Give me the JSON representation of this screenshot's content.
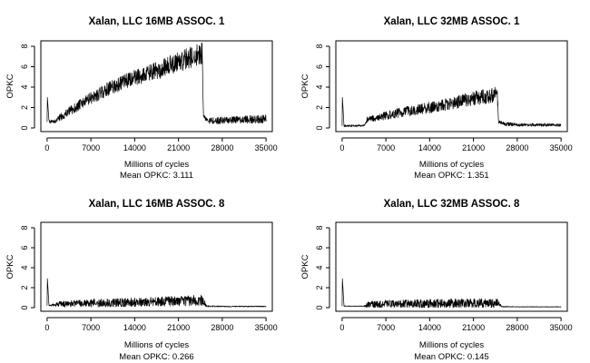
{
  "chart_data": [
    {
      "type": "line",
      "title": "Xalan, LLC 16MB ASSOC. 1",
      "xlabel": "Millions of cycles",
      "ylabel": "OPKC",
      "subtitle": "Mean OPKC: 3.111",
      "xlim": [
        -1000,
        36000
      ],
      "ylim": [
        0,
        8
      ],
      "xticks": [
        0,
        7000,
        14000,
        21000,
        28000,
        35000
      ],
      "yticks": [
        0,
        2,
        4,
        6,
        8
      ],
      "series": [
        {
          "x": [
            0,
            50,
            300,
            1500,
            2000,
            4000,
            7000,
            10000,
            14000,
            17500,
            21000,
            24800,
            25000,
            26000,
            28000,
            31000,
            35000
          ],
          "y": [
            0.6,
            3.0,
            0.6,
            0.7,
            1.0,
            1.8,
            2.9,
            3.9,
            4.9,
            5.6,
            6.5,
            7.3,
            1.1,
            0.7,
            0.75,
            0.8,
            0.9
          ],
          "noise": [
            0,
            0,
            0.15,
            0.2,
            0.35,
            0.5,
            0.6,
            0.7,
            0.8,
            0.9,
            1.0,
            1.1,
            0.2,
            0.3,
            0.35,
            0.35,
            0.45
          ]
        }
      ]
    },
    {
      "type": "line",
      "title": "Xalan, LLC 32MB ASSOC. 1",
      "xlabel": "Millions of cycles",
      "ylabel": "OPKC",
      "subtitle": "Mean OPKC: 1.351",
      "xlim": [
        -1000,
        36000
      ],
      "ylim": [
        0,
        8
      ],
      "xticks": [
        0,
        7000,
        14000,
        21000,
        28000,
        35000
      ],
      "yticks": [
        0,
        2,
        4,
        6,
        8
      ],
      "series": [
        {
          "x": [
            0,
            50,
            300,
            3500,
            4000,
            7000,
            10000,
            14000,
            17500,
            21000,
            24800,
            25000,
            26000,
            28000,
            31000,
            35000
          ],
          "y": [
            0.2,
            3.0,
            0.2,
            0.25,
            0.8,
            1.2,
            1.6,
            2.0,
            2.4,
            2.9,
            3.3,
            0.6,
            0.4,
            0.3,
            0.3,
            0.3
          ],
          "noise": [
            0,
            0,
            0.1,
            0.1,
            0.3,
            0.4,
            0.5,
            0.55,
            0.6,
            0.7,
            0.8,
            0.2,
            0.2,
            0.15,
            0.15,
            0.15
          ]
        }
      ]
    },
    {
      "type": "line",
      "title": "Xalan, LLC 16MB ASSOC. 8",
      "xlabel": "Millions of cycles",
      "ylabel": "OPKC",
      "subtitle": "Mean OPKC: 0.266",
      "xlim": [
        -1000,
        36000
      ],
      "ylim": [
        0,
        8
      ],
      "xticks": [
        0,
        7000,
        14000,
        21000,
        28000,
        35000
      ],
      "yticks": [
        0,
        2,
        4,
        6,
        8
      ],
      "series": [
        {
          "x": [
            0,
            50,
            300,
            2000,
            7000,
            14000,
            21000,
            24800,
            25500,
            28000,
            35000
          ],
          "y": [
            0.2,
            2.9,
            0.2,
            0.35,
            0.45,
            0.55,
            0.65,
            0.75,
            0.15,
            0.12,
            0.12
          ],
          "noise": [
            0,
            0,
            0.05,
            0.3,
            0.4,
            0.45,
            0.5,
            0.55,
            0.08,
            0.05,
            0.05
          ]
        }
      ]
    },
    {
      "type": "line",
      "title": "Xalan, LLC 32MB ASSOC. 8",
      "xlabel": "Millions of cycles",
      "ylabel": "OPKC",
      "subtitle": "Mean OPKC: 0.145",
      "xlim": [
        -1000,
        36000
      ],
      "ylim": [
        0,
        8
      ],
      "xticks": [
        0,
        7000,
        14000,
        21000,
        28000,
        35000
      ],
      "yticks": [
        0,
        2,
        4,
        6,
        8
      ],
      "series": [
        {
          "x": [
            0,
            50,
            300,
            3500,
            4000,
            7000,
            14000,
            21000,
            24800,
            25500,
            28000,
            35000
          ],
          "y": [
            0.15,
            2.9,
            0.15,
            0.15,
            0.3,
            0.35,
            0.4,
            0.45,
            0.45,
            0.1,
            0.08,
            0.08
          ],
          "noise": [
            0,
            0,
            0.03,
            0.03,
            0.35,
            0.4,
            0.45,
            0.45,
            0.45,
            0.05,
            0.03,
            0.03
          ]
        }
      ]
    }
  ]
}
